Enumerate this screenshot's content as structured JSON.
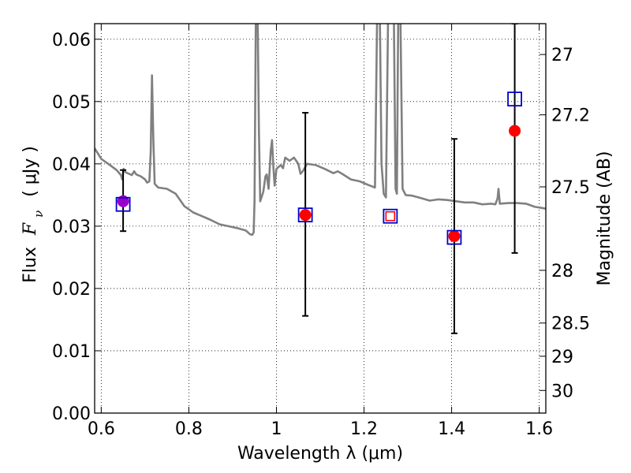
{
  "chart_data": {
    "type": "scatter",
    "xlabel": "Wavelength  λ (μm)",
    "ylabel": "Flux  F_ν  ( μJy )",
    "ylabel_parts": {
      "prefix": "Flux",
      "symbol": "F",
      "subscript": "ν",
      "unit": "( μJy )"
    },
    "y2label": "Magnitude (AB)",
    "xlim": [
      0.585,
      1.615
    ],
    "ylim": [
      0.0,
      0.0625
    ],
    "grid": true,
    "x_ticks": [
      0.6,
      0.8,
      1.0,
      1.2,
      1.4,
      1.6
    ],
    "x_tick_labels": [
      "0.6",
      "0.8",
      "1",
      "1.2",
      "1.4",
      "1.6"
    ],
    "y_ticks": [
      0.0,
      0.01,
      0.02,
      0.03,
      0.04,
      0.05,
      0.06
    ],
    "y_tick_labels": [
      "0.00",
      "0.01",
      "0.02",
      "0.03",
      "0.04",
      "0.05",
      "0.06"
    ],
    "y2_ticks": [
      27,
      27.2,
      27.5,
      28,
      28.5,
      29,
      30
    ],
    "y2_tick_labels": [
      "27",
      "27.2",
      "27.5",
      "28",
      "28.5",
      "29",
      "30"
    ],
    "colors": {
      "spectrum": "#808080",
      "observed": "#ff0000",
      "model": "#0000cc",
      "errorbar": "#000000",
      "first_point": "#9900cc"
    },
    "series": [
      {
        "type": "line",
        "points": [
          [
            0.585,
            0.0425
          ],
          [
            0.6,
            0.0408
          ],
          [
            0.62,
            0.0398
          ],
          [
            0.635,
            0.039
          ],
          [
            0.645,
            0.0382
          ],
          [
            0.648,
            0.0375
          ],
          [
            0.651,
            0.0392
          ],
          [
            0.655,
            0.0387
          ],
          [
            0.66,
            0.0385
          ],
          [
            0.67,
            0.0382
          ],
          [
            0.675,
            0.0388
          ],
          [
            0.68,
            0.0383
          ],
          [
            0.69,
            0.038
          ],
          [
            0.7,
            0.0375
          ],
          [
            0.705,
            0.037
          ],
          [
            0.71,
            0.0372
          ],
          [
            0.713,
            0.042
          ],
          [
            0.716,
            0.0542
          ],
          [
            0.719,
            0.044
          ],
          [
            0.722,
            0.0368
          ],
          [
            0.73,
            0.0362
          ],
          [
            0.75,
            0.036
          ],
          [
            0.77,
            0.0352
          ],
          [
            0.79,
            0.0332
          ],
          [
            0.81,
            0.0322
          ],
          [
            0.83,
            0.0316
          ],
          [
            0.85,
            0.031
          ],
          [
            0.87,
            0.0303
          ],
          [
            0.89,
            0.03
          ],
          [
            0.91,
            0.0297
          ],
          [
            0.93,
            0.0293
          ],
          [
            0.94,
            0.0287
          ],
          [
            0.945,
            0.0286
          ],
          [
            0.948,
            0.029
          ],
          [
            0.95,
            0.034
          ],
          [
            0.953,
            0.0645
          ],
          [
            0.957,
            0.0645
          ],
          [
            0.96,
            0.045
          ],
          [
            0.963,
            0.034
          ],
          [
            0.97,
            0.0355
          ],
          [
            0.975,
            0.038
          ],
          [
            0.978,
            0.0383
          ],
          [
            0.982,
            0.036
          ],
          [
            0.987,
            0.042
          ],
          [
            0.99,
            0.0438
          ],
          [
            0.993,
            0.0395
          ],
          [
            0.996,
            0.0365
          ],
          [
            1.0,
            0.0392
          ],
          [
            1.01,
            0.0398
          ],
          [
            1.015,
            0.0393
          ],
          [
            1.02,
            0.041
          ],
          [
            1.03,
            0.0405
          ],
          [
            1.04,
            0.041
          ],
          [
            1.05,
            0.04
          ],
          [
            1.055,
            0.0384
          ],
          [
            1.06,
            0.0388
          ],
          [
            1.07,
            0.04
          ],
          [
            1.09,
            0.0398
          ],
          [
            1.11,
            0.0392
          ],
          [
            1.13,
            0.0385
          ],
          [
            1.14,
            0.0388
          ],
          [
            1.15,
            0.0384
          ],
          [
            1.17,
            0.0375
          ],
          [
            1.19,
            0.0372
          ],
          [
            1.21,
            0.0366
          ],
          [
            1.225,
            0.0362
          ],
          [
            1.23,
            0.0645
          ],
          [
            1.236,
            0.0645
          ],
          [
            1.24,
            0.04
          ],
          [
            1.245,
            0.0352
          ],
          [
            1.25,
            0.0346
          ],
          [
            1.255,
            0.0645
          ],
          [
            1.268,
            0.0645
          ],
          [
            1.272,
            0.036
          ],
          [
            1.275,
            0.0352
          ],
          [
            1.278,
            0.0645
          ],
          [
            1.283,
            0.0645
          ],
          [
            1.288,
            0.036
          ],
          [
            1.295,
            0.035
          ],
          [
            1.31,
            0.0349
          ],
          [
            1.33,
            0.0345
          ],
          [
            1.35,
            0.0341
          ],
          [
            1.37,
            0.0343
          ],
          [
            1.39,
            0.0342
          ],
          [
            1.41,
            0.034
          ],
          [
            1.43,
            0.0338
          ],
          [
            1.45,
            0.0338
          ],
          [
            1.47,
            0.0335
          ],
          [
            1.49,
            0.0336
          ],
          [
            1.5,
            0.0335
          ],
          [
            1.505,
            0.0345
          ],
          [
            1.507,
            0.036
          ],
          [
            1.51,
            0.0336
          ],
          [
            1.53,
            0.0337
          ],
          [
            1.55,
            0.0337
          ],
          [
            1.57,
            0.0336
          ],
          [
            1.59,
            0.0331
          ],
          [
            1.6,
            0.033
          ],
          [
            1.615,
            0.0328
          ]
        ]
      },
      {
        "type": "errorbar",
        "points": [
          {
            "x": 0.65,
            "y": 0.034,
            "yerr_low": 0.0292,
            "yerr_high": 0.039
          },
          {
            "x": 1.066,
            "y": 0.0318,
            "yerr_low": 0.0156,
            "yerr_high": 0.0482
          },
          {
            "x": 1.406,
            "y": 0.0284,
            "yerr_low": 0.0128,
            "yerr_high": 0.044
          },
          {
            "x": 1.544,
            "y": 0.0453,
            "yerr_low": 0.0257,
            "yerr_high": 0.0625
          }
        ]
      },
      {
        "type": "scatter",
        "marker": "circle",
        "points": [
          {
            "x": 0.65,
            "y": 0.034
          },
          {
            "x": 1.066,
            "y": 0.0318
          },
          {
            "x": 1.406,
            "y": 0.0284
          },
          {
            "x": 1.544,
            "y": 0.0453
          }
        ]
      },
      {
        "type": "scatter",
        "marker": "square-open",
        "points": [
          {
            "x": 0.65,
            "y": 0.0335
          },
          {
            "x": 1.066,
            "y": 0.0318
          },
          {
            "x": 1.26,
            "y": 0.0316
          },
          {
            "x": 1.406,
            "y": 0.0282
          },
          {
            "x": 1.544,
            "y": 0.0504
          }
        ]
      },
      {
        "type": "scatter",
        "marker": "square-open-small",
        "points": [
          {
            "x": 1.26,
            "y": 0.0316
          }
        ]
      }
    ]
  }
}
